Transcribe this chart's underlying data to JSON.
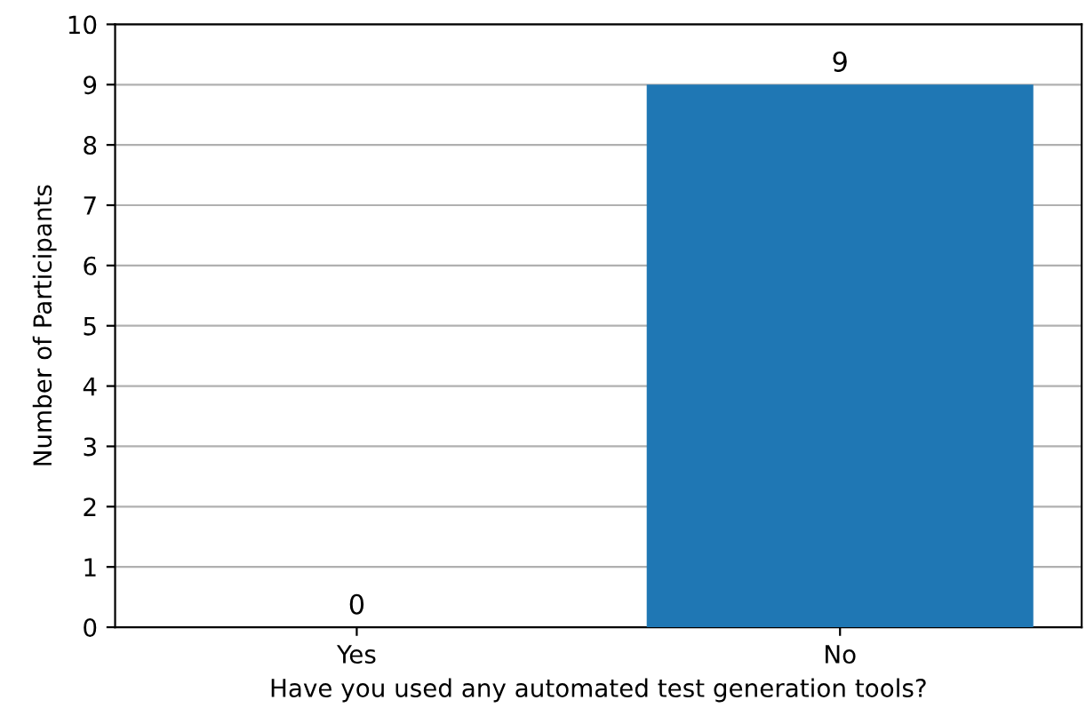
{
  "chart_data": {
    "type": "bar",
    "xlabel": "Have you used any automated test generation tools?",
    "ylabel": "Number of Participants",
    "categories": [
      "Yes",
      "No"
    ],
    "values": [
      0,
      9
    ],
    "color": "#1f77b4",
    "ylim": [
      0,
      10
    ],
    "yticks": [
      0,
      1,
      2,
      3,
      4,
      5,
      6,
      7,
      8,
      9,
      10
    ],
    "grid": "y",
    "data_labels": true
  }
}
